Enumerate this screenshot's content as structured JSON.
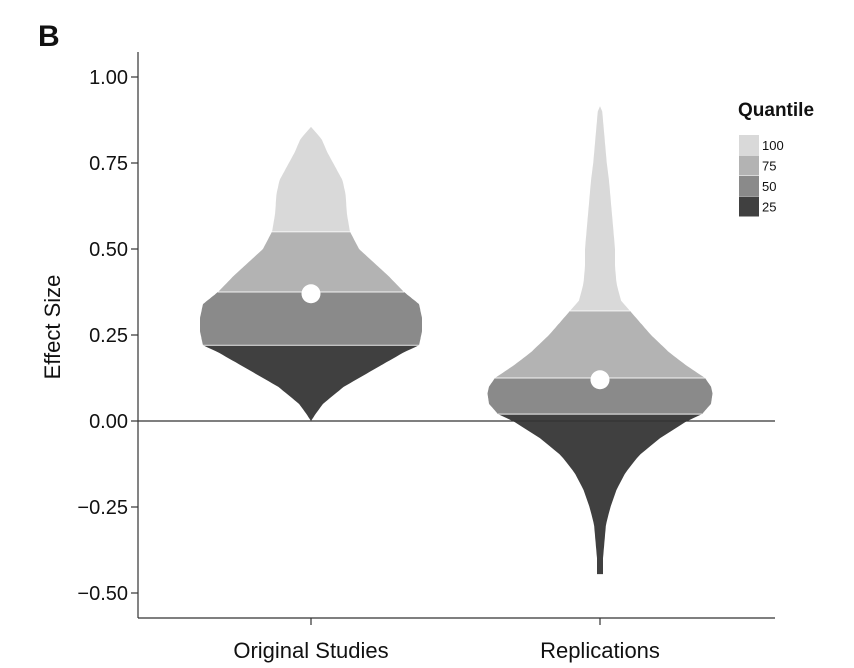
{
  "panel_label": "B",
  "chart_data": {
    "type": "violin",
    "title": "",
    "xlabel": "",
    "ylabel": "Effect Size",
    "ylim": [
      -0.58,
      1.07
    ],
    "yticks": [
      "1.00",
      "0.75",
      "0.50",
      "0.25",
      "0.00",
      "−0.25",
      "−0.50"
    ],
    "ytick_values": [
      1.0,
      0.75,
      0.5,
      0.25,
      0.0,
      -0.25,
      -0.5
    ],
    "reference_line_y": 0.0,
    "categories": [
      "Original Studies",
      "Replications"
    ],
    "legend": {
      "title": "Quantile",
      "placement": "right",
      "entries": [
        {
          "label": "100",
          "color": "#d9d9d9"
        },
        {
          "label": "75",
          "color": "#b3b3b3"
        },
        {
          "label": "50",
          "color": "#8a8a8a"
        },
        {
          "label": "25",
          "color": "#404040"
        }
      ]
    },
    "series": [
      {
        "category": "Original Studies",
        "mean": 0.37,
        "quantile_bounds": [
          0.0,
          0.22,
          0.375,
          0.55,
          0.855
        ],
        "density": [
          [
            0.0,
            0.0
          ],
          [
            0.02,
            0.03
          ],
          [
            0.05,
            0.08
          ],
          [
            0.1,
            0.22
          ],
          [
            0.15,
            0.42
          ],
          [
            0.2,
            0.62
          ],
          [
            0.22,
            0.72
          ],
          [
            0.26,
            0.74
          ],
          [
            0.3,
            0.74
          ],
          [
            0.34,
            0.72
          ],
          [
            0.375,
            0.62
          ],
          [
            0.42,
            0.52
          ],
          [
            0.46,
            0.42
          ],
          [
            0.5,
            0.32
          ],
          [
            0.55,
            0.26
          ],
          [
            0.6,
            0.24
          ],
          [
            0.66,
            0.23
          ],
          [
            0.7,
            0.21
          ],
          [
            0.74,
            0.16
          ],
          [
            0.78,
            0.11
          ],
          [
            0.82,
            0.07
          ],
          [
            0.855,
            0.0
          ]
        ]
      },
      {
        "category": "Replications",
        "mean": 0.12,
        "quantile_bounds": [
          -0.445,
          0.02,
          0.125,
          0.32,
          0.915
        ],
        "density": [
          [
            -0.445,
            0.02
          ],
          [
            -0.4,
            0.02
          ],
          [
            -0.35,
            0.03
          ],
          [
            -0.3,
            0.04
          ],
          [
            -0.25,
            0.07
          ],
          [
            -0.2,
            0.11
          ],
          [
            -0.15,
            0.17
          ],
          [
            -0.1,
            0.26
          ],
          [
            -0.05,
            0.4
          ],
          [
            0.0,
            0.58
          ],
          [
            0.02,
            0.68
          ],
          [
            0.05,
            0.74
          ],
          [
            0.08,
            0.75
          ],
          [
            0.1,
            0.74
          ],
          [
            0.125,
            0.7
          ],
          [
            0.16,
            0.58
          ],
          [
            0.2,
            0.46
          ],
          [
            0.25,
            0.34
          ],
          [
            0.3,
            0.24
          ],
          [
            0.32,
            0.2
          ],
          [
            0.35,
            0.14
          ],
          [
            0.4,
            0.11
          ],
          [
            0.45,
            0.1
          ],
          [
            0.5,
            0.1
          ],
          [
            0.55,
            0.09
          ],
          [
            0.6,
            0.08
          ],
          [
            0.65,
            0.07
          ],
          [
            0.7,
            0.06
          ],
          [
            0.75,
            0.045
          ],
          [
            0.8,
            0.035
          ],
          [
            0.85,
            0.025
          ],
          [
            0.9,
            0.015
          ],
          [
            0.915,
            0.0
          ]
        ]
      }
    ]
  }
}
